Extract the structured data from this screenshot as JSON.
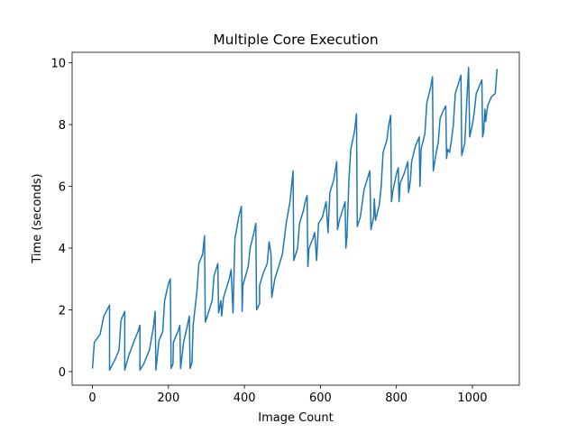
{
  "chart_data": {
    "type": "line",
    "title": "Multiple Core Execution",
    "x_label": "Image Count",
    "y_label": "Time (seconds)",
    "x": [
      0,
      5,
      20,
      30,
      45,
      45,
      60,
      70,
      75,
      85,
      85,
      95,
      110,
      120,
      125,
      125,
      135,
      150,
      160,
      165,
      167,
      175,
      185,
      190,
      200,
      205,
      207,
      212,
      213,
      225,
      230,
      232,
      240,
      250,
      255,
      257,
      262,
      265,
      275,
      280,
      290,
      295,
      297,
      305,
      315,
      320,
      330,
      332,
      338,
      340,
      345,
      360,
      365,
      370,
      375,
      385,
      392,
      394,
      396,
      410,
      415,
      425,
      430,
      432,
      440,
      440,
      450,
      460,
      465,
      470,
      472,
      480,
      490,
      500,
      505,
      510,
      520,
      528,
      530,
      540,
      545,
      555,
      560,
      565,
      567,
      570,
      580,
      585,
      590,
      595,
      605,
      615,
      620,
      625,
      635,
      643,
      645,
      650,
      660,
      665,
      667,
      670,
      675,
      680,
      690,
      695,
      697,
      705,
      715,
      725,
      730,
      733,
      740,
      742,
      745,
      755,
      760,
      765,
      775,
      780,
      785,
      787,
      790,
      800,
      805,
      807,
      810,
      820,
      830,
      832,
      837,
      840,
      850,
      860,
      862,
      865,
      875,
      880,
      890,
      895,
      897,
      905,
      910,
      915,
      925,
      930,
      932,
      935,
      940,
      945,
      950,
      955,
      965,
      970,
      972,
      980,
      985,
      990,
      993,
      1000,
      1005,
      1010,
      1020,
      1025,
      1027,
      1030,
      1033,
      1035,
      1040,
      1050,
      1060,
      1065
    ],
    "series": [
      {
        "color": "#1f77b4",
        "values": [
          0.1,
          0.95,
          1.2,
          1.8,
          2.15,
          0.05,
          0.4,
          0.7,
          1.65,
          1.95,
          0.05,
          0.5,
          1.0,
          1.3,
          1.5,
          0.05,
          0.25,
          0.7,
          1.4,
          1.95,
          0.05,
          1.0,
          1.3,
          2.3,
          2.85,
          3.0,
          0.1,
          0.25,
          0.95,
          1.3,
          1.5,
          0.1,
          0.95,
          1.5,
          1.8,
          0.1,
          0.3,
          1.5,
          2.6,
          3.5,
          3.8,
          4.4,
          1.6,
          1.9,
          2.3,
          3.1,
          3.5,
          1.9,
          2.3,
          1.8,
          2.4,
          3.0,
          3.3,
          1.9,
          4.3,
          5.0,
          5.35,
          1.95,
          2.8,
          3.4,
          4.0,
          4.5,
          4.8,
          2.0,
          2.2,
          2.8,
          3.2,
          3.5,
          4.2,
          3.8,
          2.4,
          3.0,
          3.4,
          3.8,
          4.3,
          4.8,
          5.5,
          6.5,
          3.6,
          4.0,
          4.8,
          5.2,
          5.5,
          5.7,
          3.4,
          4.0,
          4.3,
          4.5,
          3.6,
          4.8,
          5.0,
          5.5,
          4.5,
          5.8,
          6.2,
          6.8,
          4.6,
          4.9,
          5.3,
          5.5,
          4.0,
          4.4,
          6.2,
          7.2,
          7.8,
          8.35,
          4.7,
          5.0,
          5.9,
          6.3,
          6.5,
          4.6,
          5.0,
          5.6,
          4.9,
          5.4,
          6.0,
          7.1,
          7.5,
          8.0,
          8.3,
          5.5,
          5.8,
          6.4,
          6.6,
          5.5,
          6.1,
          6.4,
          6.8,
          5.8,
          6.2,
          6.8,
          7.3,
          7.6,
          6.0,
          7.2,
          7.7,
          8.7,
          9.2,
          9.55,
          6.5,
          7.1,
          7.4,
          8.2,
          8.5,
          8.6,
          6.9,
          7.2,
          7.1,
          7.5,
          8.0,
          9.0,
          9.4,
          9.6,
          7.0,
          7.4,
          8.7,
          9.85,
          7.6,
          8.0,
          8.4,
          9.0,
          9.3,
          9.45,
          7.6,
          7.8,
          8.5,
          8.1,
          8.6,
          8.9,
          9.0,
          9.8
        ]
      }
    ],
    "xlim": [
      -53.5,
      1123.5
    ],
    "ylim": [
      -0.44,
      10.34
    ],
    "xticks": [
      0,
      200,
      400,
      600,
      800,
      1000
    ],
    "yticks": [
      0,
      2,
      4,
      6,
      8,
      10
    ]
  }
}
